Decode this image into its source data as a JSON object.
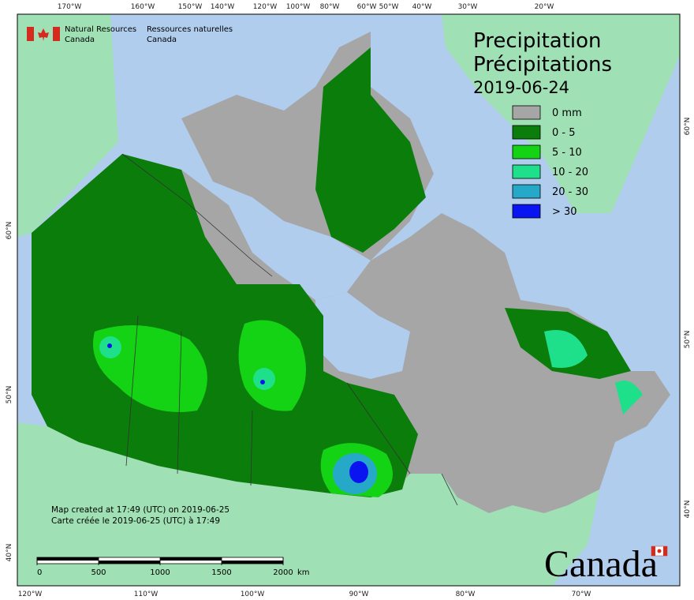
{
  "header": {
    "agency_en": [
      "Natural Resources",
      "Canada"
    ],
    "agency_fr": [
      "Ressources naturelles",
      "Canada"
    ]
  },
  "title": {
    "en": "Precipitation",
    "fr": "Précipitations",
    "date": "2019-06-24"
  },
  "legend": [
    {
      "label": "0 mm",
      "color": "#a6a6a6"
    },
    {
      "label": "0 - 5",
      "color": "#0b7d0b"
    },
    {
      "label": "5 - 10",
      "color": "#14d314"
    },
    {
      "label": "10 - 20",
      "color": "#1fe08a"
    },
    {
      "label": "20 - 30",
      "color": "#26a9c9"
    },
    {
      "label": "> 30",
      "color": "#0a14f0"
    }
  ],
  "graticule": {
    "top": [
      "170°W",
      "160°W",
      "150°W",
      "140°W",
      "120°W",
      "100°W",
      "80°W",
      "60°W",
      "50°W",
      "40°W",
      "30°W",
      "20°W"
    ],
    "bottom": [
      "120°W",
      "110°W",
      "100°W",
      "90°W",
      "80°W",
      "70°W"
    ],
    "left": [
      "60°N",
      "50°N",
      "40°N"
    ],
    "right": [
      "60°N",
      "50°N",
      "40°N"
    ]
  },
  "notes": [
    "Map created at 17:49 (UTC) on 2019-06-25",
    "Carte créée le 2019-06-25 (UTC) à 17:49"
  ],
  "scale_bar": {
    "ticks": [
      0,
      500,
      1000,
      1500,
      2000
    ],
    "unit": "km"
  },
  "wordmark": "Canada"
}
